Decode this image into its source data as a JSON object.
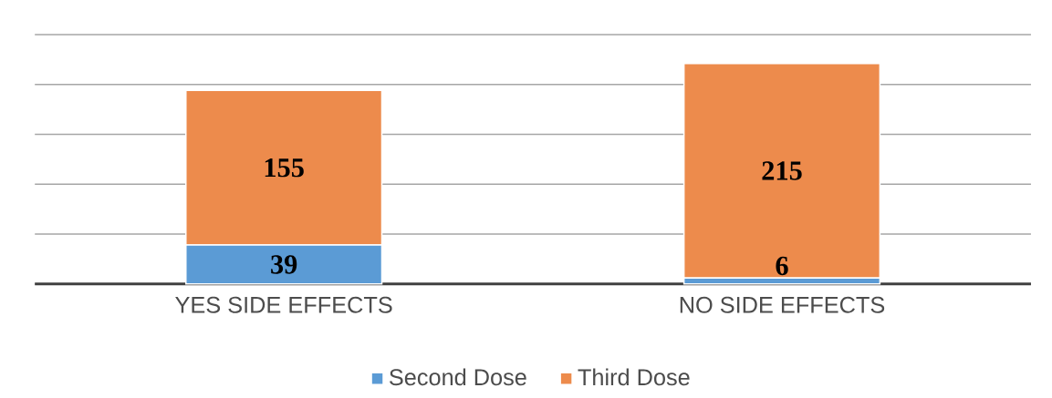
{
  "chart_data": {
    "type": "bar",
    "stacked": true,
    "categories": [
      "YES SIDE EFFECTS",
      "NO SIDE EFFECTS"
    ],
    "series": [
      {
        "name": "Second Dose",
        "color": "#5b9bd5",
        "values": [
          39,
          6
        ]
      },
      {
        "name": "Third Dose",
        "color": "#ed8b4c",
        "values": [
          155,
          215
        ]
      }
    ],
    "ylim": [
      0,
      250
    ],
    "yticks": [
      {
        "value": 0,
        "label": null
      },
      {
        "value": 50,
        "label": null
      },
      {
        "value": 100,
        "label": null
      },
      {
        "value": 150,
        "label": null
      },
      {
        "value": 200,
        "label": null
      },
      {
        "value": 250,
        "label": null
      }
    ],
    "tick_labels": "x",
    "grid": "y",
    "legend": "bottom",
    "data_labels": true
  }
}
